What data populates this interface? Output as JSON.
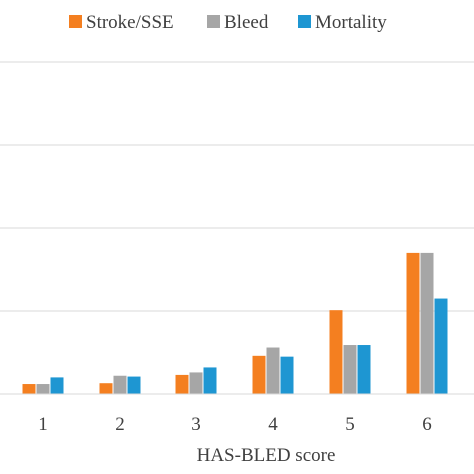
{
  "chart_data": {
    "type": "bar",
    "title": "",
    "xlabel": "HAS-BLED score",
    "ylabel": "",
    "categories": [
      "1",
      "2",
      "3",
      "4",
      "5",
      "6"
    ],
    "series": [
      {
        "name": "Stroke/SSE",
        "color": "#F47F20",
        "values": [
          1.2,
          1.3,
          2.3,
          4.6,
          10.1,
          17.0
        ]
      },
      {
        "name": "Bleed",
        "color": "#A6A6A6",
        "values": [
          1.2,
          2.2,
          2.6,
          5.6,
          5.9,
          17.0
        ]
      },
      {
        "name": "Mortality",
        "color": "#1E96D2",
        "values": [
          2.0,
          2.1,
          3.2,
          4.5,
          5.9,
          11.5
        ]
      }
    ],
    "ylim": [
      0,
      40
    ],
    "grid": true,
    "legend_position": "top"
  }
}
